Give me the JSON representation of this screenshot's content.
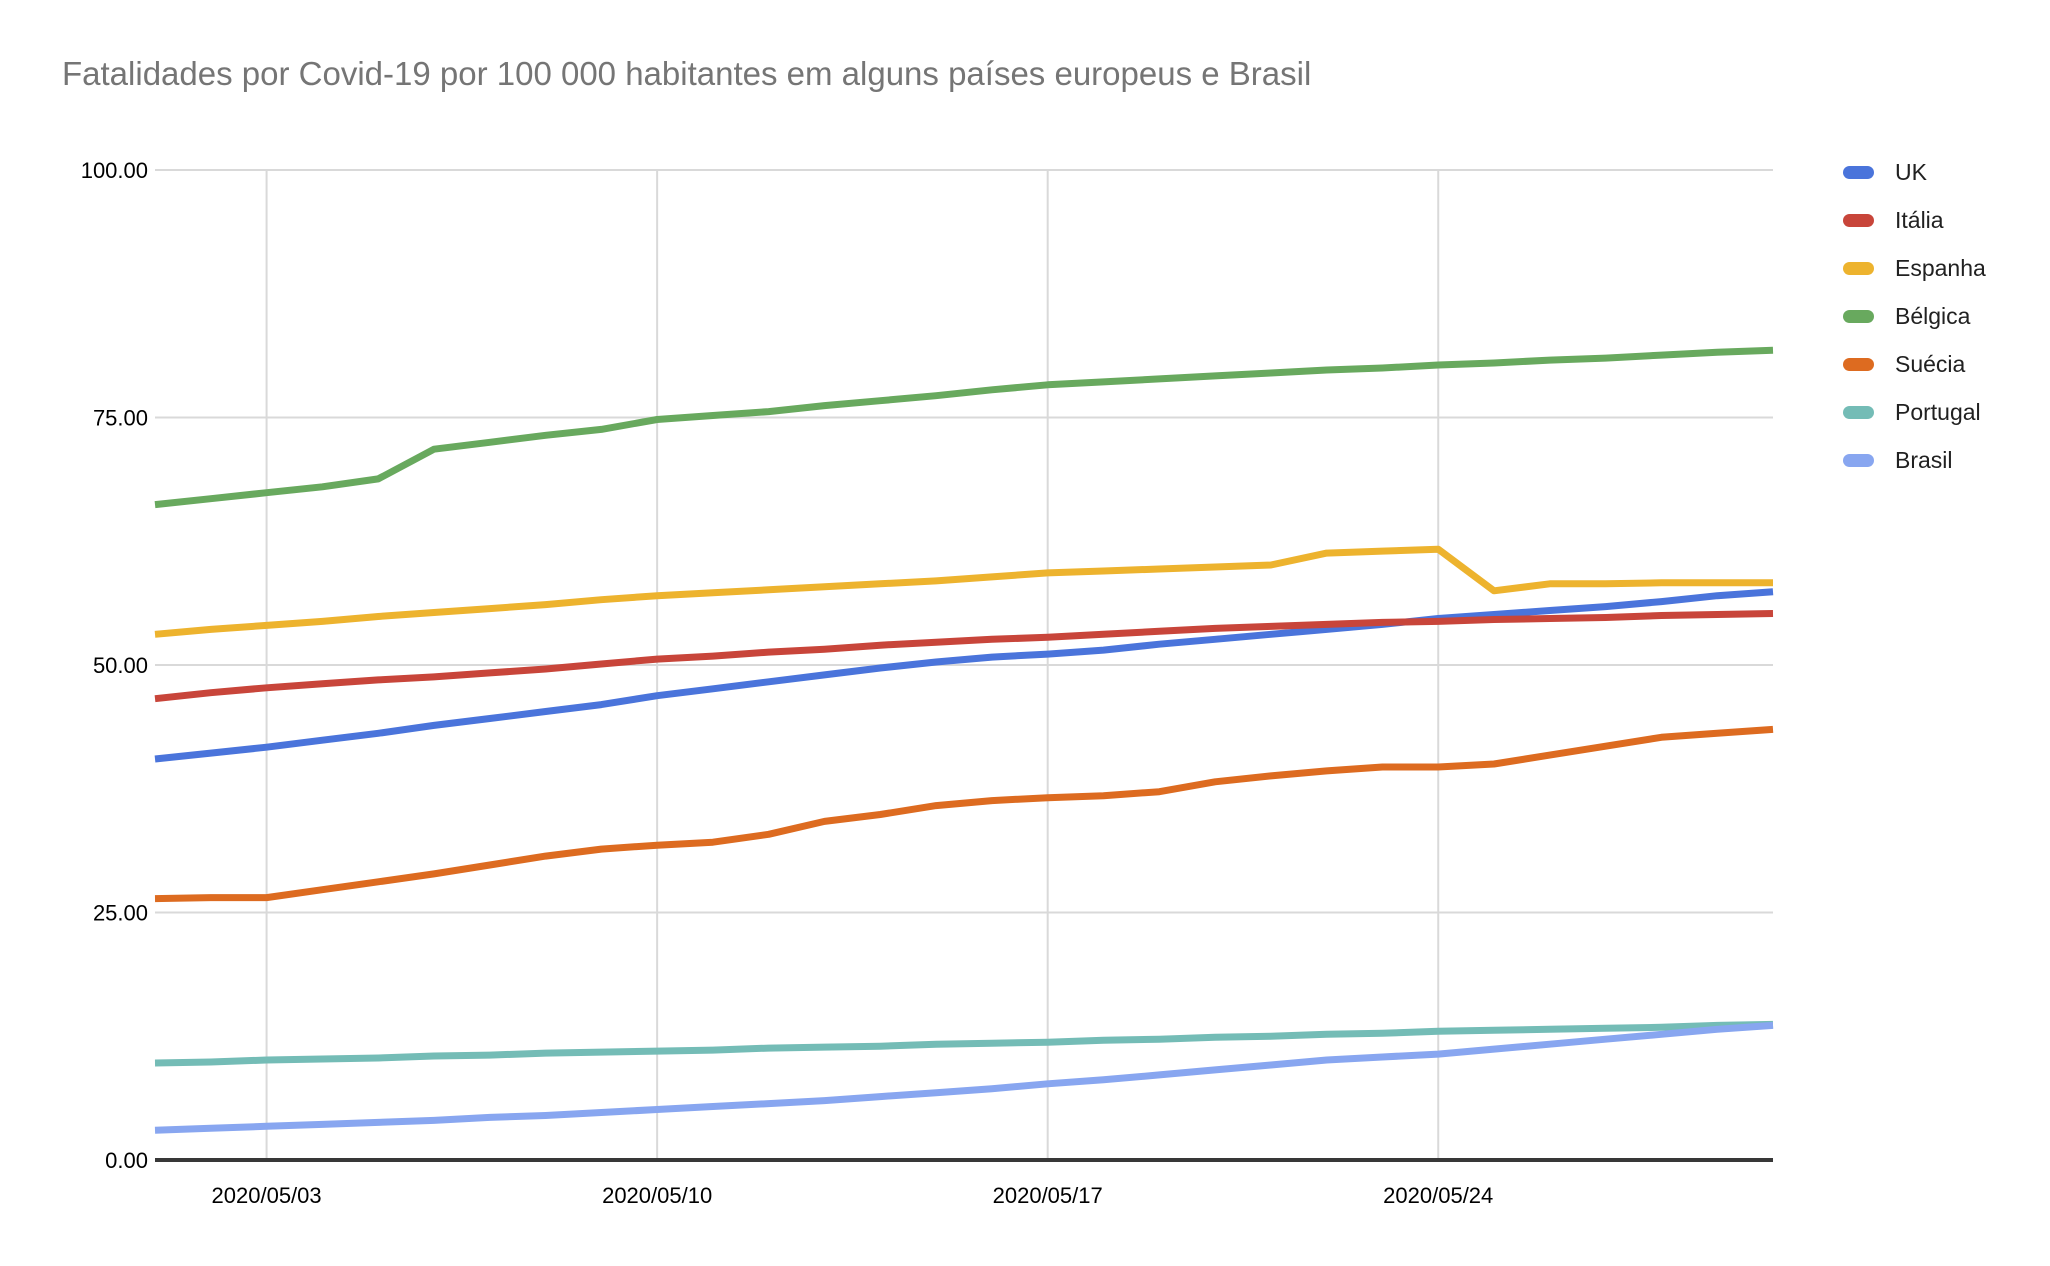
{
  "title": "Fatalidades por Covid-19 por 100 000 habitantes em alguns países europeus e Brasil",
  "colors": {
    "background": "#ffffff",
    "title_text": "#757575",
    "tick_label": "#000000",
    "gridline": "#d9d9d9",
    "axis_baseline": "#383838",
    "legend_text": "#212121"
  },
  "chart_data": {
    "type": "line",
    "title": "Fatalidades por Covid-19 por 100 000 habitantes em alguns países europeus e Brasil",
    "xlabel": "",
    "ylabel": "",
    "ylim": [
      0,
      100
    ],
    "grid": true,
    "legend_position": "right",
    "x": [
      "2020/05/01",
      "2020/05/02",
      "2020/05/03",
      "2020/05/04",
      "2020/05/05",
      "2020/05/06",
      "2020/05/07",
      "2020/05/08",
      "2020/05/09",
      "2020/05/10",
      "2020/05/11",
      "2020/05/12",
      "2020/05/13",
      "2020/05/14",
      "2020/05/15",
      "2020/05/16",
      "2020/05/17",
      "2020/05/18",
      "2020/05/19",
      "2020/05/20",
      "2020/05/21",
      "2020/05/22",
      "2020/05/23",
      "2020/05/24",
      "2020/05/25",
      "2020/05/26",
      "2020/05/27",
      "2020/05/28",
      "2020/05/29",
      "2020/05/30"
    ],
    "y_ticks": [
      {
        "value": 100,
        "label": "100.00"
      },
      {
        "value": 75,
        "label": "75.00"
      },
      {
        "value": 50,
        "label": "50.00"
      },
      {
        "value": 25,
        "label": "25.00"
      },
      {
        "value": 0,
        "label": "0.00"
      }
    ],
    "x_ticks": [
      {
        "index": 2,
        "label": "2020/05/03"
      },
      {
        "index": 9,
        "label": "2020/05/10"
      },
      {
        "index": 16,
        "label": "2020/05/17"
      },
      {
        "index": 23,
        "label": "2020/05/24"
      }
    ],
    "series": [
      {
        "name": "UK",
        "color": "#4a74db",
        "values": [
          40.5,
          41.1,
          41.7,
          42.4,
          43.1,
          43.9,
          44.6,
          45.3,
          46.0,
          46.9,
          47.6,
          48.3,
          49.0,
          49.7,
          50.3,
          50.8,
          51.1,
          51.5,
          52.1,
          52.6,
          53.1,
          53.6,
          54.1,
          54.7,
          55.1,
          55.5,
          55.9,
          56.4,
          57.0,
          57.4
        ]
      },
      {
        "name": "Itália",
        "color": "#c8453a",
        "values": [
          46.6,
          47.2,
          47.7,
          48.1,
          48.5,
          48.8,
          49.2,
          49.6,
          50.1,
          50.6,
          50.9,
          51.3,
          51.6,
          52.0,
          52.3,
          52.6,
          52.8,
          53.1,
          53.4,
          53.7,
          53.9,
          54.1,
          54.3,
          54.4,
          54.6,
          54.7,
          54.8,
          55.0,
          55.1,
          55.2
        ]
      },
      {
        "name": "Espanha",
        "color": "#edb32e",
        "values": [
          53.1,
          53.6,
          54.0,
          54.4,
          54.9,
          55.3,
          55.7,
          56.1,
          56.6,
          57.0,
          57.3,
          57.6,
          57.9,
          58.2,
          58.5,
          58.9,
          59.3,
          59.5,
          59.7,
          59.9,
          60.1,
          61.3,
          61.5,
          61.7,
          57.5,
          58.2,
          58.2,
          58.3,
          58.3,
          58.3
        ]
      },
      {
        "name": "Bélgica",
        "color": "#68a95e",
        "values": [
          66.2,
          66.8,
          67.4,
          68.0,
          68.8,
          71.8,
          72.5,
          73.2,
          73.8,
          74.8,
          75.2,
          75.6,
          76.2,
          76.7,
          77.2,
          77.8,
          78.3,
          78.6,
          78.9,
          79.2,
          79.5,
          79.8,
          80.0,
          80.3,
          80.5,
          80.8,
          81.0,
          81.3,
          81.6,
          81.8
        ]
      },
      {
        "name": "Suécia",
        "color": "#dd6b20",
        "values": [
          26.4,
          26.5,
          26.5,
          27.3,
          28.1,
          28.9,
          29.8,
          30.7,
          31.4,
          31.8,
          32.1,
          32.9,
          34.2,
          34.9,
          35.8,
          36.3,
          36.6,
          36.8,
          37.2,
          38.2,
          38.8,
          39.3,
          39.7,
          39.7,
          40.0,
          40.9,
          41.8,
          42.7,
          43.1,
          43.5
        ]
      },
      {
        "name": "Portugal",
        "color": "#74bcb6",
        "values": [
          9.8,
          9.9,
          10.1,
          10.2,
          10.3,
          10.5,
          10.6,
          10.8,
          10.9,
          11.0,
          11.1,
          11.3,
          11.4,
          11.5,
          11.7,
          11.8,
          11.9,
          12.1,
          12.2,
          12.4,
          12.5,
          12.7,
          12.8,
          13.0,
          13.1,
          13.2,
          13.3,
          13.4,
          13.6,
          13.7
        ]
      },
      {
        "name": "Brasil",
        "color": "#88a6f0",
        "values": [
          3.0,
          3.2,
          3.4,
          3.6,
          3.8,
          4.0,
          4.3,
          4.5,
          4.8,
          5.1,
          5.4,
          5.7,
          6.0,
          6.4,
          6.8,
          7.2,
          7.7,
          8.1,
          8.6,
          9.1,
          9.6,
          10.1,
          10.4,
          10.7,
          11.2,
          11.7,
          12.2,
          12.7,
          13.2,
          13.6
        ]
      }
    ]
  }
}
